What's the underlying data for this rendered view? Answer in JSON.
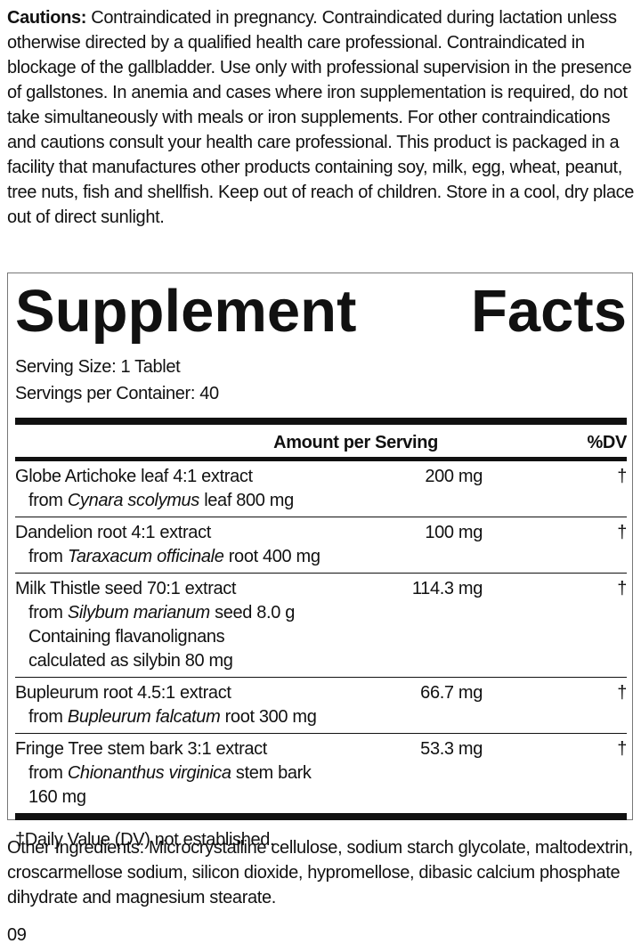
{
  "cautions": {
    "label": "Cautions:",
    "text": "Contraindicated in pregnancy. Contraindicated during lactation unless otherwise directed by a qualified health care professional. Contraindicated in blockage of the gallbladder. Use only with professional supervision in the presence of gallstones. In anemia and cases where iron supplementation is required, do not take simultaneously with meals or iron supplements. For other contraindications and cautions consult your health care professional. This product is packaged in a facility that manufactures other products containing soy, milk, egg, wheat, peanut, tree nuts, fish and shellfish. Keep out of reach of children. Store in a cool, dry place out of direct sunlight."
  },
  "facts": {
    "title_words": [
      "Supplement",
      "Facts"
    ],
    "serving_size": "Serving Size: 1 Tablet",
    "servings": "Servings per Container: 40",
    "header": {
      "amount": "Amount per Serving",
      "dv": "%DV"
    },
    "rows": [
      {
        "name": "Globe Artichoke leaf 4:1 extract",
        "amount": "200 mg",
        "dv": "†",
        "source": {
          "prefix": "from",
          "species": "Cynara scolymus",
          "suffix": "leaf 800 mg"
        }
      },
      {
        "name": "Dandelion root 4:1 extract",
        "amount": "100 mg",
        "dv": "†",
        "source": {
          "prefix": "from",
          "species": "Taraxacum officinale",
          "suffix": "root 400 mg"
        }
      },
      {
        "name": "Milk Thistle seed 70:1 extract",
        "amount": "114.3 mg",
        "dv": "†",
        "source": {
          "prefix": "from",
          "species": "Silybum marianum",
          "suffix": "seed 8.0 g"
        },
        "extra": [
          "Containing flavanolignans",
          "calculated as silybin 80 mg"
        ]
      },
      {
        "name": "Bupleurum root 4.5:1 extract",
        "amount": "66.7 mg",
        "dv": "†",
        "source": {
          "prefix": "from",
          "species": "Bupleurum falcatum",
          "suffix": "root 300 mg"
        }
      },
      {
        "name": "Fringe Tree stem bark 3:1 extract",
        "amount": "53.3 mg",
        "dv": "†",
        "source": {
          "prefix": "from",
          "species": "Chionanthus virginica",
          "suffix": "stem bark 160 mg"
        }
      }
    ],
    "footnote": "†Daily Value (DV) not established."
  },
  "other_ingredients": "Other Ingredients: Microcrystalline cellulose, sodium starch glycolate, maltodextrin, croscarmellose sodium, silicon dioxide, hypromellose, dibasic calcium phosphate dihydrate and magnesium stearate.",
  "code": "09"
}
